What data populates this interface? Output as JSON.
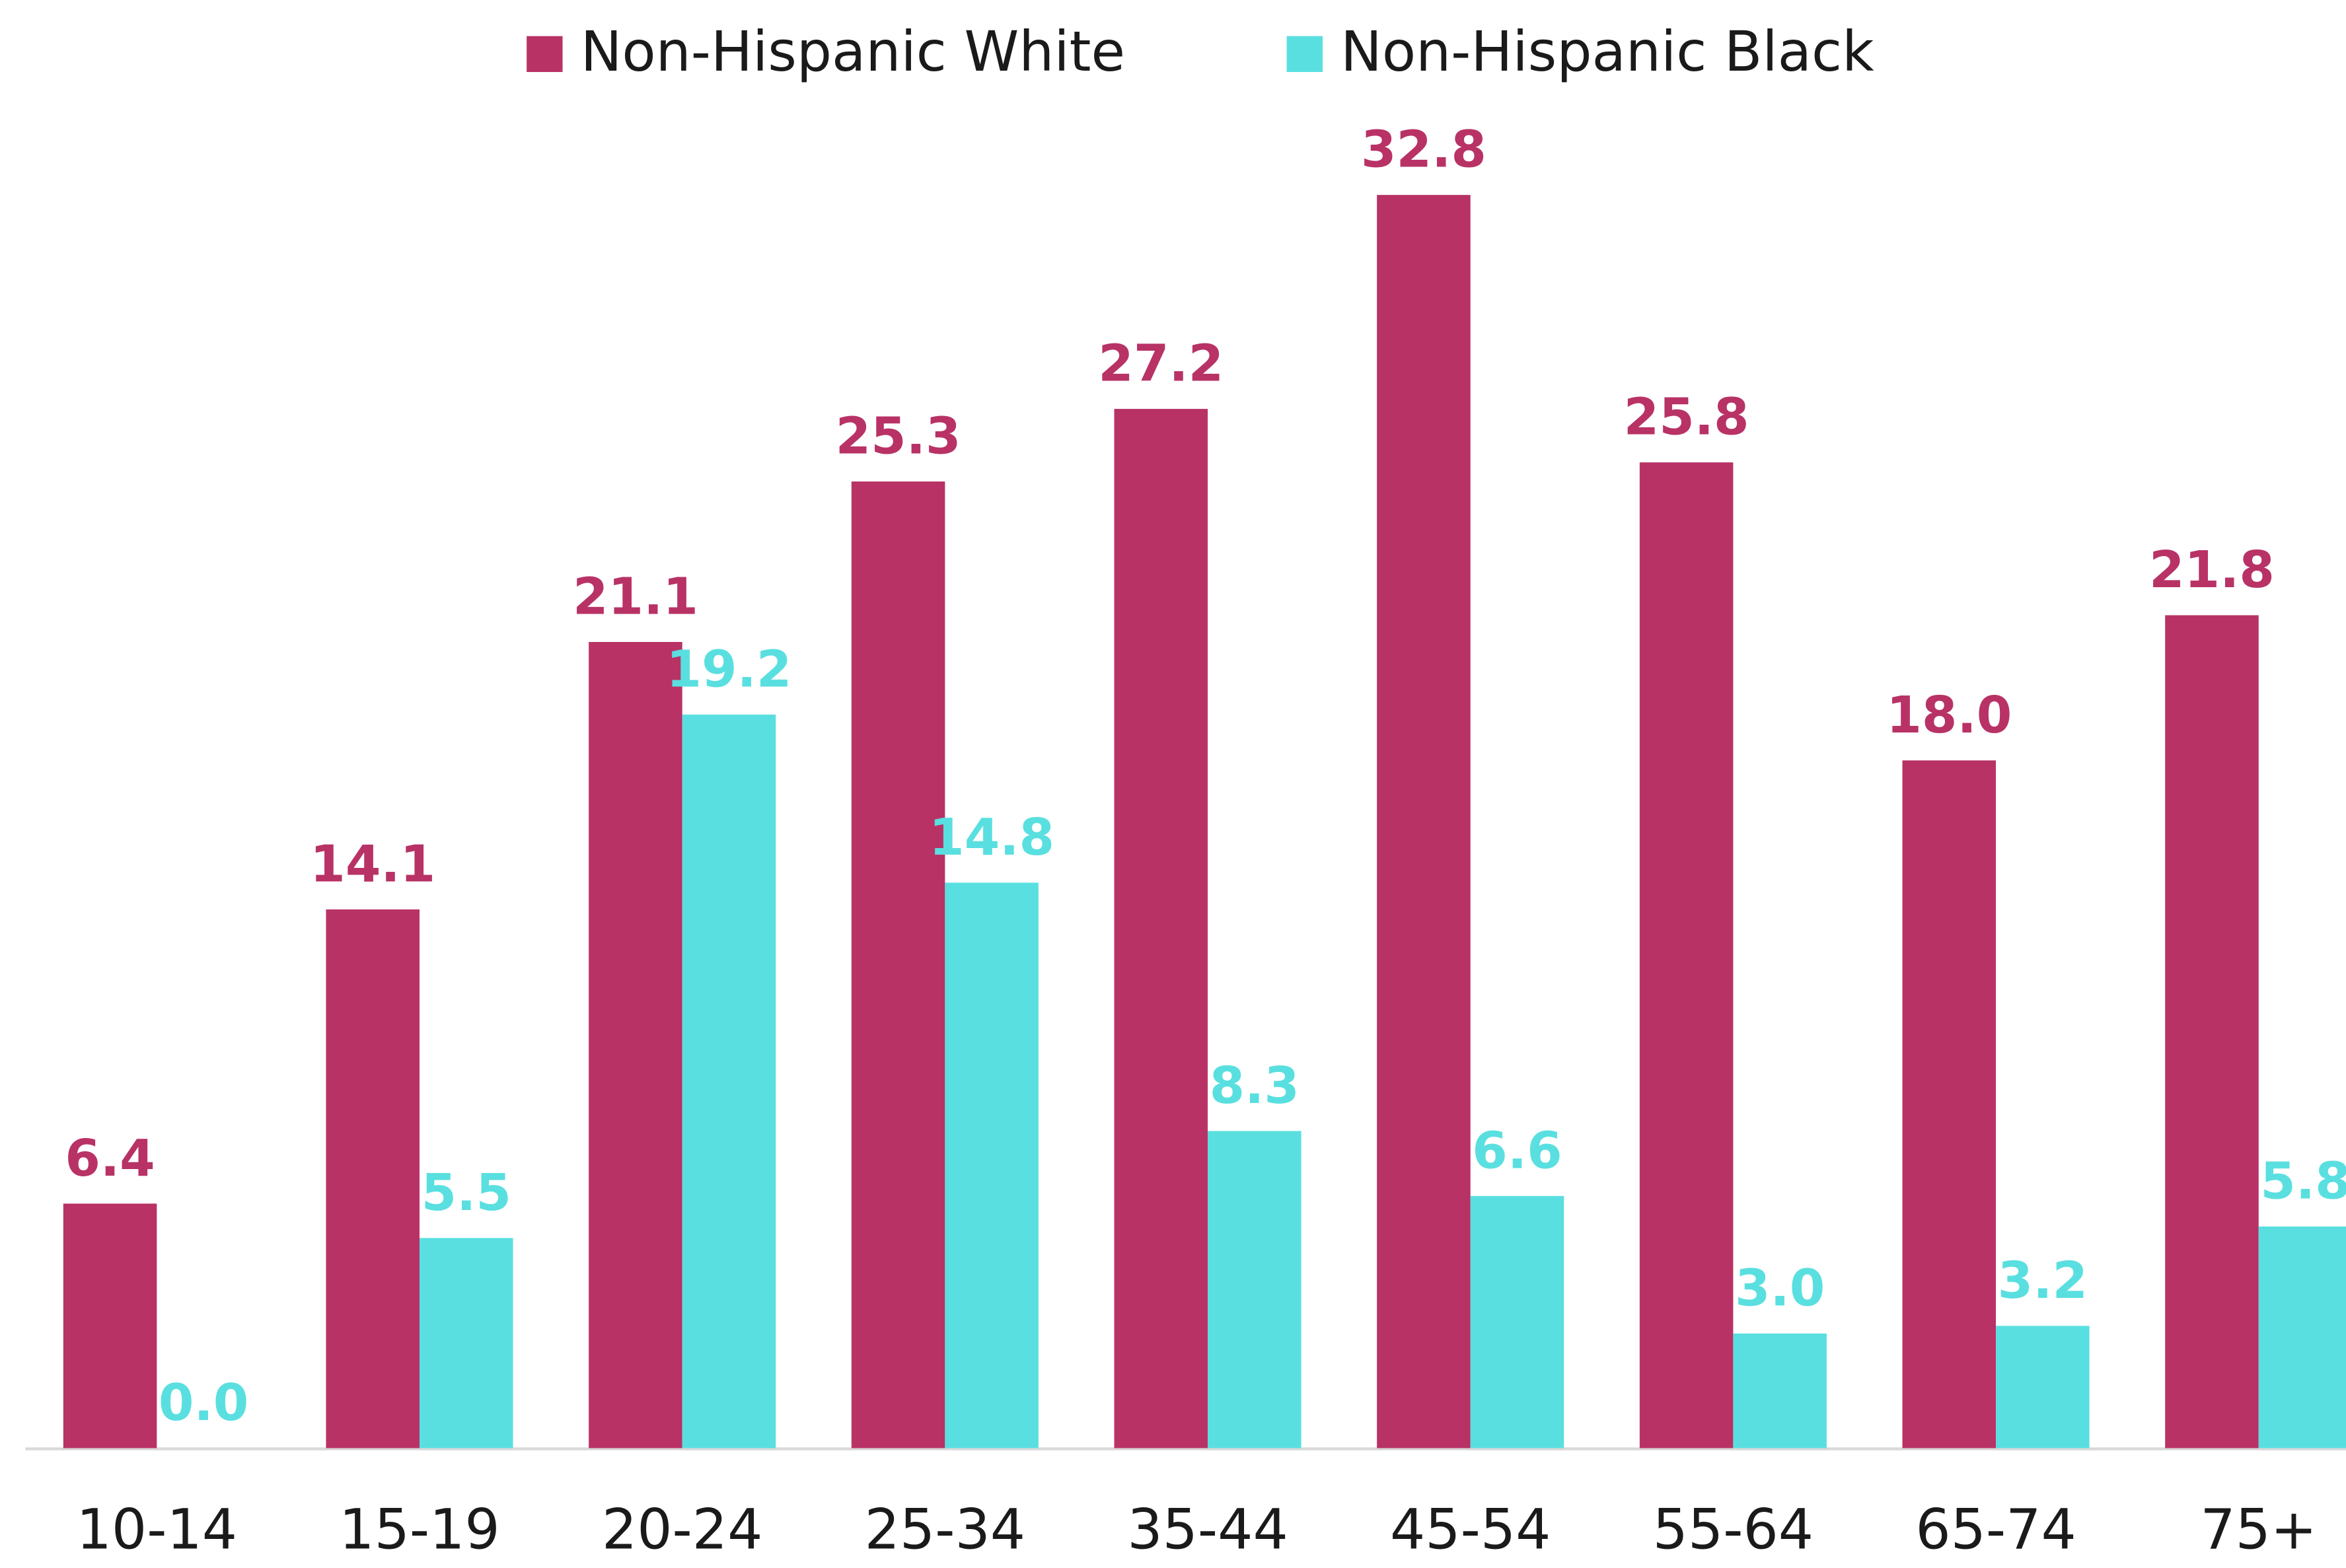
{
  "chart_data": {
    "type": "bar",
    "categories": [
      "10-14",
      "15-19",
      "20-24",
      "25-34",
      "35-44",
      "45-54",
      "55-64",
      "65-74",
      "75+"
    ],
    "series": [
      {
        "name": "Non-Hispanic White",
        "color": "#b83266",
        "values": [
          6.4,
          14.1,
          21.1,
          25.3,
          27.2,
          32.8,
          25.8,
          18,
          21.8
        ],
        "value_labels": [
          "6.4",
          "14.1",
          "21.1",
          "25.3",
          "27.2",
          "32.8",
          "25.8",
          "18.0",
          "21.8"
        ]
      },
      {
        "name": "Non-Hispanic Black",
        "color": "#5adfe0",
        "values": [
          0,
          5.5,
          19.2,
          14.8,
          8.3,
          6.6,
          3,
          3.2,
          5.8
        ],
        "value_labels": [
          "0.0",
          "5.5",
          "19.2",
          "14.8",
          "8.3",
          "6.6",
          "3.0",
          "3.2",
          "5.8"
        ]
      }
    ],
    "ylim": [
      0,
      35
    ],
    "legend": "top"
  }
}
